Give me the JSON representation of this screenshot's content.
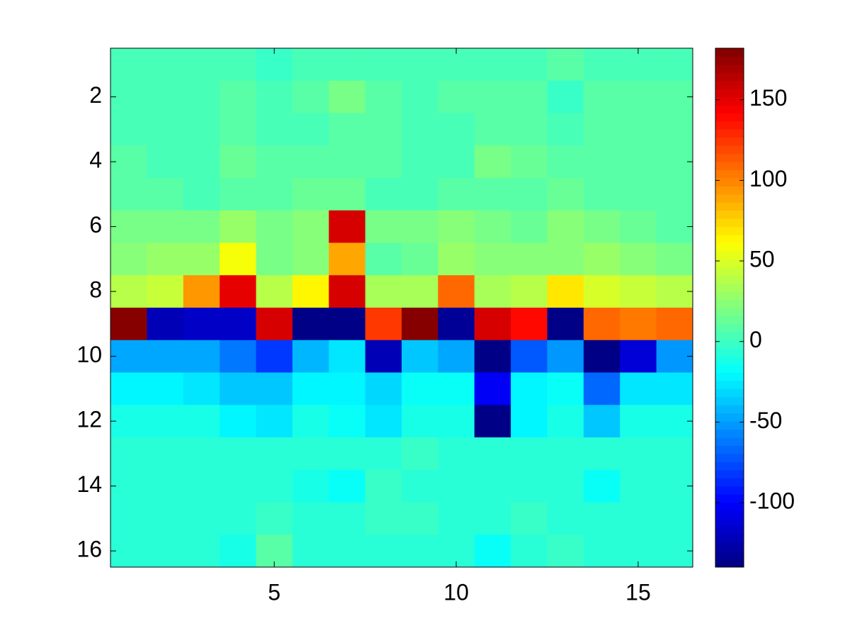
{
  "chart_data": {
    "type": "heatmap",
    "colormap": "jet",
    "colormap_levels": 64,
    "x": [
      1,
      2,
      3,
      4,
      5,
      6,
      7,
      8,
      9,
      10,
      11,
      12,
      13,
      14,
      15,
      16
    ],
    "y": [
      1,
      2,
      3,
      4,
      5,
      6,
      7,
      8,
      9,
      10,
      11,
      12,
      13,
      14,
      15,
      16
    ],
    "z": [
      [
        5,
        5,
        5,
        5,
        0,
        5,
        5,
        5,
        5,
        5,
        5,
        5,
        10,
        5,
        5,
        5
      ],
      [
        5,
        5,
        5,
        10,
        3,
        10,
        20,
        8,
        5,
        8,
        8,
        8,
        0,
        8,
        8,
        8
      ],
      [
        5,
        5,
        5,
        8,
        3,
        3,
        8,
        8,
        5,
        5,
        8,
        8,
        3,
        8,
        8,
        8
      ],
      [
        10,
        5,
        5,
        12,
        8,
        8,
        8,
        8,
        5,
        5,
        18,
        15,
        8,
        8,
        8,
        8
      ],
      [
        8,
        8,
        3,
        8,
        8,
        12,
        12,
        3,
        3,
        8,
        8,
        8,
        12,
        8,
        8,
        8
      ],
      [
        20,
        20,
        20,
        30,
        18,
        25,
        155,
        20,
        20,
        25,
        20,
        15,
        25,
        20,
        15,
        10
      ],
      [
        25,
        30,
        30,
        60,
        18,
        25,
        90,
        10,
        15,
        30,
        25,
        25,
        25,
        30,
        25,
        20
      ],
      [
        40,
        45,
        95,
        150,
        40,
        65,
        155,
        35,
        35,
        110,
        35,
        40,
        70,
        50,
        45,
        40
      ],
      [
        182,
        -120,
        -115,
        -115,
        155,
        -135,
        -140,
        125,
        180,
        -130,
        155,
        140,
        -140,
        110,
        105,
        110
      ],
      [
        -45,
        -45,
        -45,
        -60,
        -80,
        -40,
        -25,
        -120,
        -35,
        -45,
        -140,
        -70,
        -50,
        -140,
        -110,
        -50
      ],
      [
        -20,
        -20,
        -25,
        -35,
        -35,
        -20,
        -20,
        -30,
        -15,
        -15,
        -100,
        -20,
        -15,
        -65,
        -25,
        -25
      ],
      [
        -12,
        -12,
        -12,
        -20,
        -28,
        -12,
        -18,
        -28,
        -12,
        -12,
        -135,
        -20,
        -12,
        -35,
        -12,
        -12
      ],
      [
        -5,
        -5,
        -5,
        -8,
        -5,
        -5,
        -5,
        -5,
        0,
        -5,
        -8,
        -8,
        -5,
        -5,
        -5,
        -5
      ],
      [
        -5,
        -5,
        -5,
        -5,
        -5,
        -10,
        -15,
        0,
        -5,
        -5,
        -5,
        -5,
        -5,
        -15,
        -5,
        -5
      ],
      [
        -5,
        -5,
        -5,
        -5,
        0,
        -5,
        -5,
        0,
        0,
        -5,
        -5,
        0,
        -5,
        -5,
        -5,
        -5
      ],
      [
        -5,
        -5,
        -5,
        -12,
        8,
        -5,
        -5,
        -5,
        -5,
        -5,
        -15,
        -5,
        0,
        -5,
        -5,
        -5
      ]
    ],
    "xlim": [
      0.5,
      16.5
    ],
    "xticks": [
      5,
      10,
      15
    ],
    "ylim": [
      0.5,
      16.5
    ],
    "yticks": [
      2,
      4,
      6,
      8,
      10,
      12,
      14,
      16
    ],
    "y_reversed": true,
    "clim": [
      -140,
      182
    ],
    "cticks": [
      -100,
      -50,
      0,
      50,
      100,
      150
    ]
  }
}
